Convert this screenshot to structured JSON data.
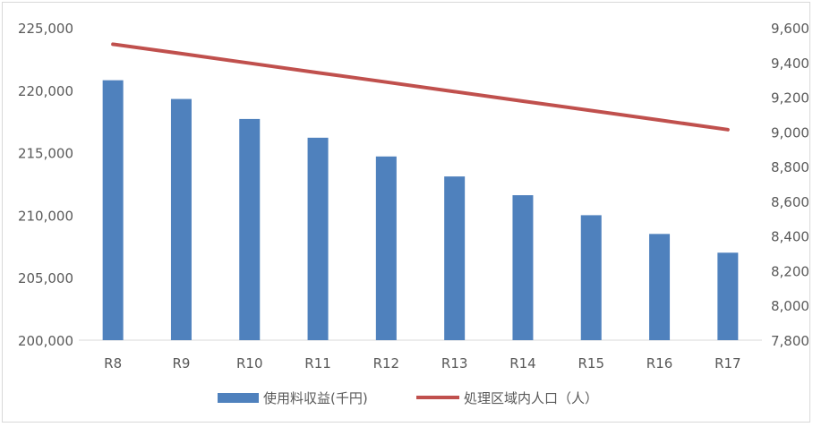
{
  "chart_data": {
    "type": "bar+line",
    "categories": [
      "R8",
      "R9",
      "R10",
      "R11",
      "R12",
      "R13",
      "R14",
      "R15",
      "R16",
      "R17"
    ],
    "series": [
      {
        "name": "使用料収益(千円)",
        "type": "bar",
        "axis": "left",
        "color": "#4f81bd",
        "values": [
          220800,
          219300,
          217700,
          216200,
          214700,
          213100,
          211600,
          210000,
          208500,
          207000
        ]
      },
      {
        "name": "処理区域内人口（人）",
        "type": "line",
        "axis": "right",
        "color": "#c0504d",
        "values": [
          9505,
          9451,
          9396,
          9341,
          9287,
          9232,
          9177,
          9123,
          9068,
          9013
        ]
      }
    ],
    "y_left": {
      "range": [
        200000,
        225000
      ],
      "ticks": [
        200000,
        205000,
        210000,
        215000,
        220000,
        225000
      ],
      "tick_labels": [
        "200,000",
        "205,000",
        "210,000",
        "215,000",
        "220,000",
        "225,000"
      ]
    },
    "y_right": {
      "range": [
        7800,
        9600
      ],
      "ticks": [
        7800,
        8000,
        8200,
        8400,
        8600,
        8800,
        9000,
        9200,
        9400,
        9600
      ],
      "tick_labels": [
        "7,800",
        "8,000",
        "8,200",
        "8,400",
        "8,600",
        "8,800",
        "9,000",
        "9,200",
        "9,400",
        "9,600"
      ]
    },
    "grid": false,
    "legend_position": "bottom"
  }
}
